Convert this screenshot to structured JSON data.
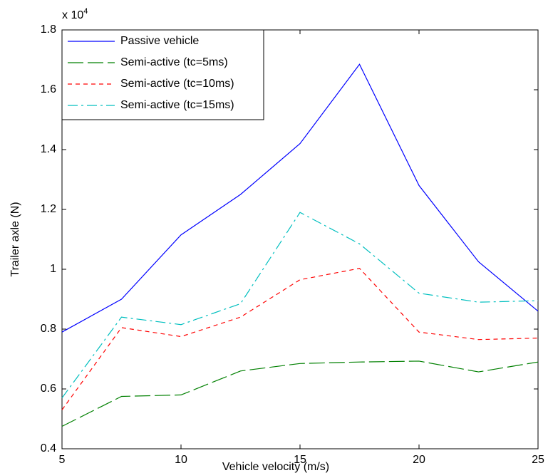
{
  "chart_data": {
    "type": "line",
    "x_label": "Vehicle velocity (m/s)",
    "y_label": "Trailer axle (N)",
    "axis_multiplier": {
      "base": "x 10",
      "exponent": "4"
    },
    "x": [
      5,
      7.5,
      10,
      12.5,
      15,
      17.5,
      20,
      22.5,
      25
    ],
    "series": [
      {
        "name": "Passive vehicle",
        "color": "#0000ff",
        "dash": "none",
        "values": [
          0.79,
          0.9,
          1.115,
          1.25,
          1.42,
          1.685,
          1.28,
          1.025,
          0.86
        ]
      },
      {
        "name": "Semi-active (tc=5ms)",
        "color": "#008000",
        "dash": "22 6",
        "values": [
          0.475,
          0.575,
          0.58,
          0.66,
          0.685,
          0.69,
          0.693,
          0.657,
          0.69
        ]
      },
      {
        "name": "Semi-active (tc=10ms)",
        "color": "#ff0000",
        "dash": "6 5",
        "values": [
          0.53,
          0.805,
          0.775,
          0.84,
          0.965,
          1.003,
          0.79,
          0.765,
          0.77
        ]
      },
      {
        "name": "Semi-active (tc=15ms)",
        "color": "#00bfbf",
        "dash": "14 5 3 5",
        "values": [
          0.57,
          0.84,
          0.815,
          0.885,
          1.19,
          1.085,
          0.92,
          0.89,
          0.895
        ]
      }
    ],
    "xlim": [
      5,
      25
    ],
    "xticks": [
      5,
      10,
      15,
      20,
      25
    ],
    "ylim": [
      0.4,
      1.8
    ],
    "yticks": [
      0.4,
      0.6,
      0.8,
      1,
      1.2,
      1.4,
      1.6,
      1.8
    ],
    "legend": "upper left",
    "grid": false
  }
}
